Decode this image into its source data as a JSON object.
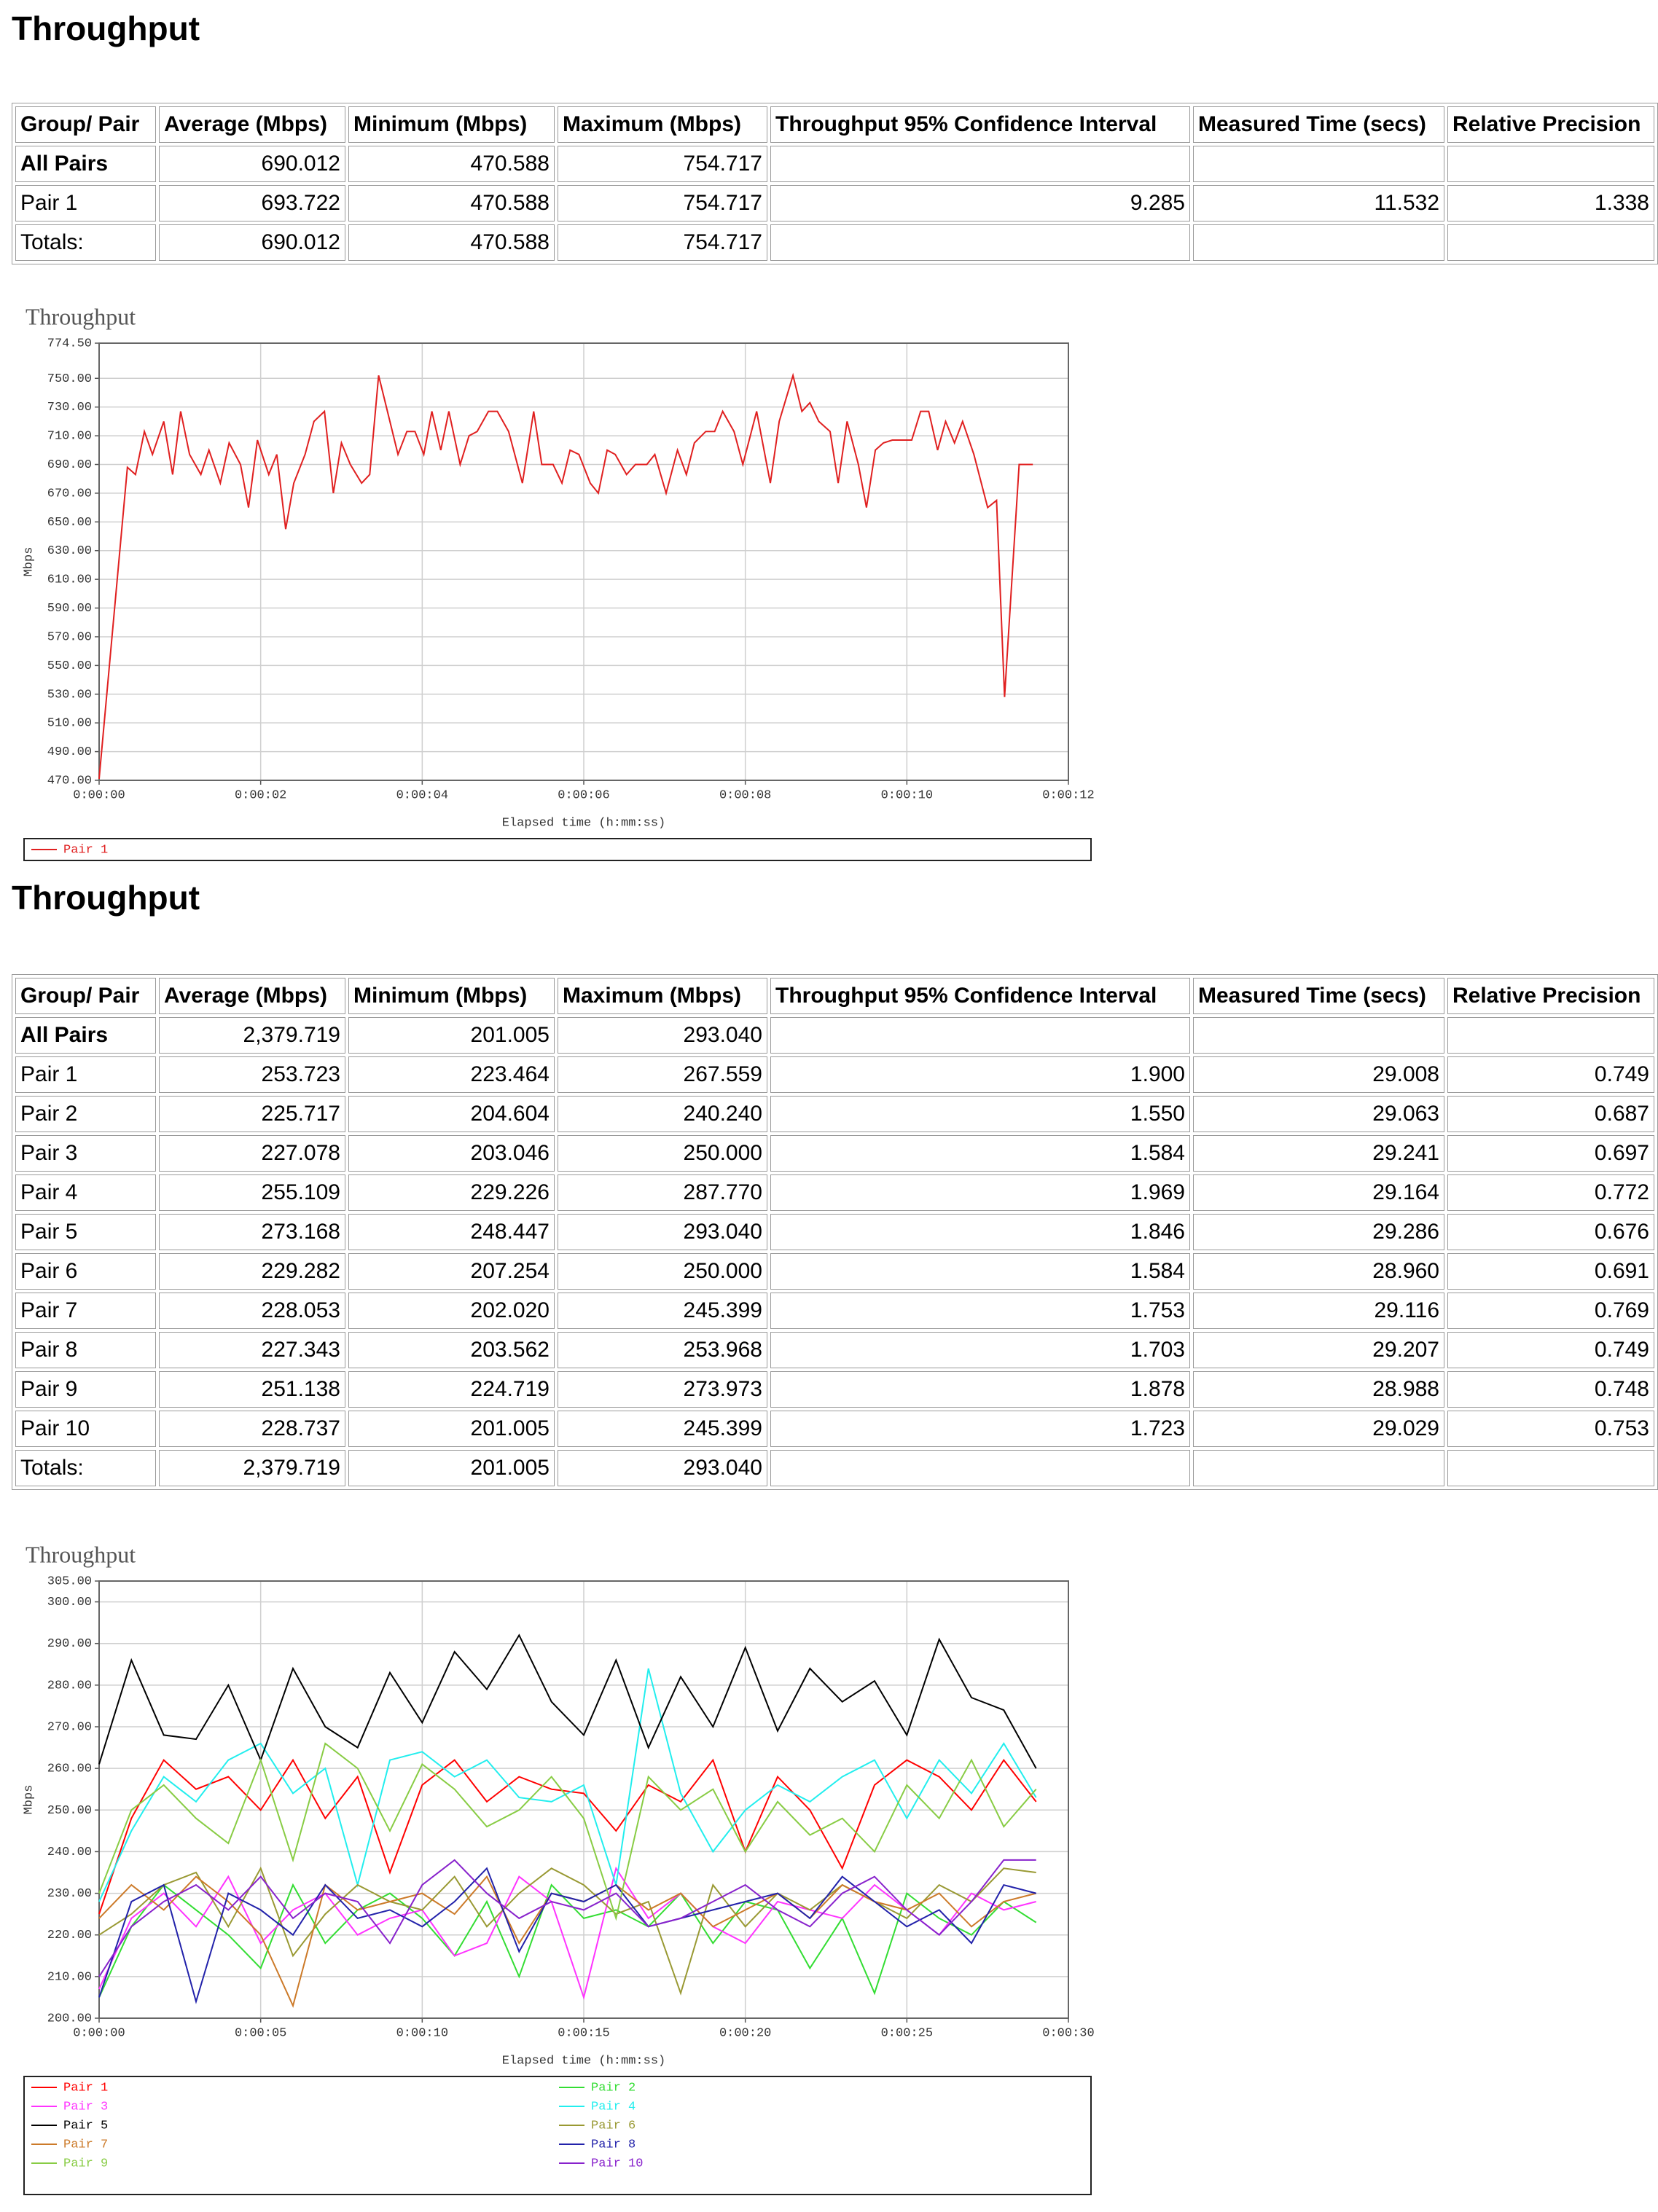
{
  "sections": [
    {
      "title": "Throughput",
      "table": {
        "header": [
          "Group/ Pair",
          "Average (Mbps)",
          "Minimum (Mbps)",
          "Maximum (Mbps)",
          "Throughput 95% Confidence Interval",
          "Measured Time (secs)",
          "Relative Precision"
        ],
        "rows": [
          [
            "All Pairs",
            "690.012",
            "470.588",
            "754.717",
            null,
            null,
            null
          ],
          [
            "Pair 1",
            "693.722",
            "470.588",
            "754.717",
            "9.285",
            "11.532",
            "1.338"
          ],
          [
            "Totals:",
            "690.012",
            "470.588",
            "754.717",
            null,
            null,
            null
          ]
        ]
      }
    },
    {
      "title": "Throughput",
      "table": {
        "header": [
          "Group/ Pair",
          "Average (Mbps)",
          "Minimum (Mbps)",
          "Maximum (Mbps)",
          "Throughput 95% Confidence Interval",
          "Measured Time (secs)",
          "Relative Precision"
        ],
        "rows": [
          [
            "All Pairs",
            "2,379.719",
            "201.005",
            "293.040",
            null,
            null,
            null
          ],
          [
            "Pair 1",
            "253.723",
            "223.464",
            "267.559",
            "1.900",
            "29.008",
            "0.749"
          ],
          [
            "Pair 2",
            "225.717",
            "204.604",
            "240.240",
            "1.550",
            "29.063",
            "0.687"
          ],
          [
            "Pair 3",
            "227.078",
            "203.046",
            "250.000",
            "1.584",
            "29.241",
            "0.697"
          ],
          [
            "Pair 4",
            "255.109",
            "229.226",
            "287.770",
            "1.969",
            "29.164",
            "0.772"
          ],
          [
            "Pair 5",
            "273.168",
            "248.447",
            "293.040",
            "1.846",
            "29.286",
            "0.676"
          ],
          [
            "Pair 6",
            "229.282",
            "207.254",
            "250.000",
            "1.584",
            "28.960",
            "0.691"
          ],
          [
            "Pair 7",
            "228.053",
            "202.020",
            "245.399",
            "1.753",
            "29.116",
            "0.769"
          ],
          [
            "Pair 8",
            "227.343",
            "203.562",
            "253.968",
            "1.703",
            "29.207",
            "0.749"
          ],
          [
            "Pair 9",
            "251.138",
            "224.719",
            "273.973",
            "1.878",
            "28.988",
            "0.748"
          ],
          [
            "Pair 10",
            "228.737",
            "201.005",
            "245.399",
            "1.723",
            "29.029",
            "0.753"
          ],
          [
            "Totals:",
            "2,379.719",
            "201.005",
            "293.040",
            null,
            null,
            null
          ]
        ]
      }
    }
  ],
  "chart_data": [
    {
      "type": "line",
      "title": "Throughput",
      "x_label": "Elapsed time (h:mm:ss)",
      "y_label": "Mbps",
      "grid": true,
      "xlim": [
        0,
        12
      ],
      "ylim": [
        470,
        774.5
      ],
      "xticks": [
        {
          "value": 0,
          "label": "0:00:00"
        },
        {
          "value": 2,
          "label": "0:00:02"
        },
        {
          "value": 4,
          "label": "0:00:04"
        },
        {
          "value": 6,
          "label": "0:00:06"
        },
        {
          "value": 8,
          "label": "0:00:08"
        },
        {
          "value": 10,
          "label": "0:00:10"
        },
        {
          "value": 12,
          "label": "0:00:12"
        }
      ],
      "yticks": [
        {
          "value": 470,
          "label": "470.00"
        },
        {
          "value": 490,
          "label": "490.00"
        },
        {
          "value": 510,
          "label": "510.00"
        },
        {
          "value": 530,
          "label": "530.00"
        },
        {
          "value": 550,
          "label": "550.00"
        },
        {
          "value": 570,
          "label": "570.00"
        },
        {
          "value": 590,
          "label": "590.00"
        },
        {
          "value": 610,
          "label": "610.00"
        },
        {
          "value": 630,
          "label": "630.00"
        },
        {
          "value": 650,
          "label": "650.00"
        },
        {
          "value": 670,
          "label": "670.00"
        },
        {
          "value": 690,
          "label": "690.00"
        },
        {
          "value": 710,
          "label": "710.00"
        },
        {
          "value": 730,
          "label": "730.00"
        },
        {
          "value": 750,
          "label": "750.00"
        },
        {
          "value": 774.5,
          "label": "774.50"
        }
      ],
      "x": [
        0,
        0.35,
        0.45,
        0.56,
        0.66,
        0.8,
        0.91,
        1.01,
        1.12,
        1.26,
        1.36,
        1.5,
        1.61,
        1.75,
        1.85,
        1.96,
        2.1,
        2.2,
        2.31,
        2.41,
        2.55,
        2.66,
        2.79,
        2.9,
        3.0,
        3.11,
        3.25,
        3.35,
        3.46,
        3.6,
        3.7,
        3.81,
        3.91,
        4.02,
        4.12,
        4.23,
        4.33,
        4.47,
        4.58,
        4.68,
        4.82,
        4.93,
        5.07,
        5.24,
        5.38,
        5.48,
        5.62,
        5.73,
        5.83,
        5.94,
        6.08,
        6.18,
        6.29,
        6.39,
        6.53,
        6.64,
        6.78,
        6.88,
        7.02,
        7.16,
        7.27,
        7.37,
        7.51,
        7.62,
        7.72,
        7.86,
        7.97,
        8.14,
        8.31,
        8.42,
        8.59,
        8.7,
        8.8,
        8.91,
        9.05,
        9.15,
        9.26,
        9.4,
        9.5,
        9.61,
        9.71,
        9.82,
        10.06,
        10.17,
        10.27,
        10.38,
        10.48,
        10.59,
        10.69,
        10.83,
        11.0,
        11.11,
        11.21,
        11.39,
        11.56
      ],
      "series": [
        {
          "name": "Pair 1",
          "color": "#e02020",
          "values": [
            471,
            688,
            683,
            713,
            697,
            720,
            683,
            727,
            697,
            683,
            700,
            677,
            705,
            690,
            660,
            707,
            683,
            697,
            645,
            677,
            697,
            720,
            727,
            670,
            705,
            690,
            677,
            683,
            752,
            720,
            697,
            713,
            713,
            697,
            727,
            700,
            727,
            690,
            710,
            713,
            727,
            727,
            713,
            677,
            727,
            690,
            690,
            677,
            700,
            697,
            677,
            670,
            700,
            697,
            683,
            690,
            690,
            697,
            670,
            700,
            683,
            705,
            713,
            713,
            727,
            713,
            690,
            727,
            677,
            720,
            752,
            727,
            733,
            720,
            713,
            677,
            720,
            690,
            660,
            700,
            705,
            707,
            707,
            727,
            727,
            700,
            720,
            705,
            720,
            697,
            660,
            665,
            528,
            690,
            690
          ]
        }
      ]
    },
    {
      "type": "line",
      "title": "Throughput",
      "x_label": "Elapsed time (h:mm:ss)",
      "y_label": "Mbps",
      "grid": true,
      "xlim": [
        0,
        30
      ],
      "ylim": [
        200,
        305
      ],
      "xticks": [
        {
          "value": 0,
          "label": "0:00:00"
        },
        {
          "value": 5,
          "label": "0:00:05"
        },
        {
          "value": 10,
          "label": "0:00:10"
        },
        {
          "value": 15,
          "label": "0:00:15"
        },
        {
          "value": 20,
          "label": "0:00:20"
        },
        {
          "value": 25,
          "label": "0:00:25"
        },
        {
          "value": 30,
          "label": "0:00:30"
        }
      ],
      "yticks": [
        {
          "value": 200,
          "label": "200.00"
        },
        {
          "value": 210,
          "label": "210.00"
        },
        {
          "value": 220,
          "label": "220.00"
        },
        {
          "value": 230,
          "label": "230.00"
        },
        {
          "value": 240,
          "label": "240.00"
        },
        {
          "value": 250,
          "label": "250.00"
        },
        {
          "value": 260,
          "label": "260.00"
        },
        {
          "value": 270,
          "label": "270.00"
        },
        {
          "value": 280,
          "label": "280.00"
        },
        {
          "value": 290,
          "label": "290.00"
        },
        {
          "value": 300,
          "label": "300.00"
        },
        {
          "value": 305,
          "label": "305.00"
        }
      ],
      "x": [
        0,
        1,
        2,
        3,
        4,
        5,
        6,
        7,
        8,
        9,
        10,
        11,
        12,
        13,
        14,
        15,
        16,
        17,
        18,
        19,
        20,
        21,
        22,
        23,
        24,
        25,
        26,
        27,
        28,
        29
      ],
      "series": [
        {
          "name": "Pair 1",
          "color": "#ff0000",
          "values": [
            225,
            248,
            262,
            255,
            258,
            250,
            262,
            248,
            258,
            235,
            256,
            262,
            252,
            258,
            255,
            254,
            245,
            256,
            252,
            262,
            240,
            258,
            250,
            236,
            256,
            262,
            258,
            250,
            262,
            252
          ]
        },
        {
          "name": "Pair 2",
          "color": "#33dd33",
          "values": [
            205,
            222,
            232,
            226,
            220,
            212,
            232,
            218,
            226,
            230,
            224,
            215,
            228,
            210,
            232,
            224,
            226,
            222,
            230,
            218,
            228,
            226,
            212,
            224,
            206,
            230,
            224,
            220,
            228,
            223
          ]
        },
        {
          "name": "Pair 3",
          "color": "#ff33ff",
          "values": [
            207,
            224,
            230,
            222,
            234,
            218,
            226,
            230,
            220,
            224,
            226,
            215,
            218,
            234,
            228,
            205,
            236,
            224,
            230,
            222,
            218,
            228,
            226,
            224,
            232,
            226,
            220,
            230,
            226,
            228
          ]
        },
        {
          "name": "Pair 4",
          "color": "#22eeee",
          "values": [
            228,
            245,
            258,
            252,
            262,
            266,
            254,
            260,
            232,
            262,
            264,
            258,
            262,
            253,
            252,
            256,
            232,
            284,
            254,
            240,
            250,
            256,
            252,
            258,
            262,
            248,
            262,
            254,
            266,
            253
          ]
        },
        {
          "name": "Pair 5",
          "color": "#000000",
          "values": [
            261,
            286,
            268,
            267,
            280,
            262,
            284,
            270,
            265,
            283,
            271,
            288,
            279,
            292,
            276,
            268,
            286,
            265,
            282,
            270,
            289,
            269,
            284,
            276,
            281,
            268,
            291,
            277,
            274,
            260
          ]
        },
        {
          "name": "Pair 6",
          "color": "#999933",
          "values": [
            220,
            225,
            232,
            235,
            222,
            236,
            215,
            225,
            232,
            228,
            226,
            234,
            222,
            230,
            236,
            232,
            225,
            228,
            206,
            232,
            222,
            230,
            226,
            232,
            228,
            224,
            232,
            228,
            236,
            235
          ]
        },
        {
          "name": "Pair 7",
          "color": "#cc7a29",
          "values": [
            224,
            232,
            226,
            234,
            228,
            220,
            203,
            232,
            226,
            228,
            230,
            225,
            234,
            218,
            230,
            228,
            232,
            226,
            230,
            222,
            226,
            230,
            224,
            232,
            228,
            226,
            230,
            222,
            228,
            230
          ]
        },
        {
          "name": "Pair 8",
          "color": "#2222aa",
          "values": [
            205,
            228,
            232,
            204,
            230,
            226,
            220,
            232,
            224,
            226,
            222,
            228,
            236,
            216,
            230,
            228,
            232,
            222,
            224,
            226,
            228,
            230,
            224,
            234,
            228,
            222,
            226,
            218,
            232,
            230
          ]
        },
        {
          "name": "Pair 9",
          "color": "#88cc44",
          "values": [
            230,
            250,
            256,
            248,
            242,
            262,
            238,
            266,
            260,
            245,
            261,
            255,
            246,
            250,
            258,
            248,
            224,
            258,
            250,
            255,
            240,
            252,
            244,
            248,
            240,
            256,
            248,
            262,
            246,
            255
          ]
        },
        {
          "name": "Pair 10",
          "color": "#8822cc",
          "values": [
            210,
            222,
            228,
            232,
            226,
            234,
            224,
            230,
            228,
            218,
            232,
            238,
            230,
            224,
            228,
            226,
            230,
            222,
            224,
            228,
            232,
            226,
            222,
            230,
            234,
            226,
            220,
            228,
            238,
            238
          ]
        }
      ]
    }
  ]
}
